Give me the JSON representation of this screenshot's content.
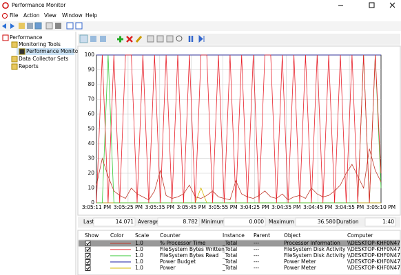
{
  "window": {
    "title": "Performance Monitor"
  },
  "menu": [
    "File",
    "Action",
    "View",
    "Window",
    "Help"
  ],
  "tree": [
    "Performance",
    "Monitoring Tools",
    "Performance Monitor",
    "Data Collector Sets",
    "Reports"
  ],
  "stats": [
    {
      "label": "Last",
      "value": "14.071"
    },
    {
      "label": "Average",
      "value": "8.782"
    },
    {
      "label": "Minimum",
      "value": "0.000"
    },
    {
      "label": "Maximum",
      "value": "36.580"
    },
    {
      "label": "Duration",
      "value": "1:40"
    }
  ],
  "counter_table": {
    "headers": [
      "Show",
      "Color",
      "Scale",
      "Counter",
      "Instance",
      "Parent",
      "Object",
      "Computer"
    ]
  },
  "chart_data": {
    "type": "line",
    "ylim": [
      0,
      100
    ],
    "yticks": [
      0,
      10,
      20,
      30,
      40,
      50,
      60,
      70,
      80,
      90,
      100
    ],
    "grid": true,
    "xtick_labels": [
      "3:05:11 PM",
      "3:05:25 PM",
      "3:05:35 PM",
      "3:05:45 PM",
      "3:05:55 PM",
      "3:04:25 PM",
      "3:04:35 PM",
      "3:04:45 PM",
      "3:04:55 PM",
      "3:05:10 PM"
    ],
    "series": [
      {
        "name": "% Processor Time",
        "color": "#c0392b",
        "scale": "1.0",
        "instance": "_Total",
        "parent": "---",
        "object": "Processor Information",
        "computer": "\\\\DESKTOP-KHF0N47",
        "values": [
          12,
          30,
          18,
          8,
          5,
          3,
          10,
          6,
          4,
          2,
          8,
          22,
          5,
          3,
          4,
          6,
          12,
          4,
          3,
          5,
          8,
          4,
          3,
          2,
          15,
          6,
          4,
          3,
          5,
          8,
          4,
          3,
          6,
          2,
          4,
          5,
          3,
          10,
          6,
          4,
          5,
          8,
          12,
          20,
          26,
          18,
          10,
          36.6,
          22,
          14.1
        ]
      },
      {
        "name": "FileSystem Bytes Written",
        "color": "#e8202a",
        "scale": "1.0",
        "instance": "_Total",
        "parent": "---",
        "object": "FileSystem Disk Activity",
        "computer": "\\\\DESKTOP-KHF0N47",
        "values": [
          0,
          100,
          0,
          100,
          0,
          100,
          100,
          0,
          100,
          0,
          100,
          0,
          100,
          0,
          100,
          0,
          100,
          0,
          100,
          100,
          0,
          100,
          0,
          100,
          0,
          100,
          0,
          100,
          0,
          100,
          100,
          0,
          100,
          0,
          100,
          0,
          100,
          0,
          100,
          0,
          100,
          0,
          100,
          0,
          100,
          0,
          100,
          0,
          100,
          20
        ]
      },
      {
        "name": "FileSystem Bytes Read",
        "color": "#34c934",
        "scale": "1.0",
        "instance": "_Total",
        "parent": "---",
        "object": "FileSystem Disk Activity",
        "computer": "\\\\DESKTOP-KHF0N47",
        "values": [
          0,
          0,
          100,
          0,
          0,
          0,
          0,
          0,
          0,
          0,
          0,
          0,
          0,
          0,
          0,
          0,
          0,
          0,
          0,
          0,
          0,
          0,
          0,
          0,
          0,
          0,
          0,
          0,
          0,
          0,
          0,
          0,
          0,
          0,
          0,
          0,
          0,
          0,
          0,
          0,
          0,
          0,
          0,
          0,
          0,
          0,
          100,
          0,
          100,
          10
        ]
      },
      {
        "name": "Power Budget",
        "color": "#1a1aa0",
        "scale": "1.0",
        "instance": "_Total",
        "parent": "---",
        "object": "Power Meter",
        "computer": "\\\\DESKTOP-KHF0N47",
        "values": [
          100,
          100,
          100,
          100,
          100,
          100,
          100,
          100,
          100,
          100,
          100,
          100,
          100,
          100,
          100,
          100,
          100,
          100,
          100,
          100,
          100,
          100,
          100,
          100,
          100,
          100,
          100,
          100,
          100,
          100,
          100,
          100,
          100,
          100,
          100,
          100,
          100,
          100,
          100,
          100,
          100,
          100,
          100,
          100,
          100,
          100,
          100,
          100,
          100,
          100
        ]
      },
      {
        "name": "Power",
        "color": "#d4b800",
        "scale": "1.0",
        "instance": "_Total",
        "parent": "---",
        "object": "Power Meter",
        "computer": "\\\\DESKTOP-KHF0N47",
        "values": [
          0,
          0,
          0,
          0,
          0,
          0,
          0,
          0,
          0,
          0,
          0,
          0,
          0,
          0,
          0,
          0,
          0,
          0,
          10,
          0,
          0,
          0,
          0,
          0,
          0,
          0,
          0,
          0,
          0,
          0,
          0,
          0,
          0,
          0,
          0,
          0,
          0,
          0,
          0,
          0,
          0,
          0,
          0,
          0,
          0,
          0,
          0,
          0,
          0,
          0
        ]
      }
    ]
  }
}
